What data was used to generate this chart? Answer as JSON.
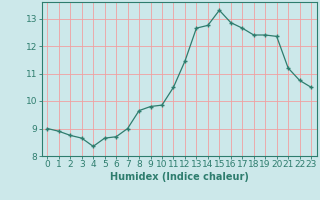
{
  "x": [
    0,
    1,
    2,
    3,
    4,
    5,
    6,
    7,
    8,
    9,
    10,
    11,
    12,
    13,
    14,
    15,
    16,
    17,
    18,
    19,
    20,
    21,
    22,
    23
  ],
  "y": [
    9.0,
    8.9,
    8.75,
    8.65,
    8.35,
    8.65,
    8.7,
    9.0,
    9.65,
    9.8,
    9.85,
    10.5,
    11.45,
    12.65,
    12.75,
    13.3,
    12.85,
    12.65,
    12.4,
    12.4,
    12.35,
    11.2,
    10.75,
    10.5
  ],
  "line_color": "#2e7d6e",
  "marker": "+",
  "marker_size": 3,
  "marker_lw": 1.0,
  "bg_color": "#cce8ea",
  "grid_color": "#f0a0a0",
  "axis_color": "#2e7d6e",
  "border_color": "#2e7d6e",
  "xlabel": "Humidex (Indice chaleur)",
  "xlim": [
    -0.5,
    23.5
  ],
  "ylim": [
    8.0,
    13.6
  ],
  "yticks": [
    8,
    9,
    10,
    11,
    12,
    13
  ],
  "xticks": [
    0,
    1,
    2,
    3,
    4,
    5,
    6,
    7,
    8,
    9,
    10,
    11,
    12,
    13,
    14,
    15,
    16,
    17,
    18,
    19,
    20,
    21,
    22,
    23
  ],
  "xlabel_fontsize": 7,
  "tick_fontsize": 6.5,
  "line_width": 0.9
}
